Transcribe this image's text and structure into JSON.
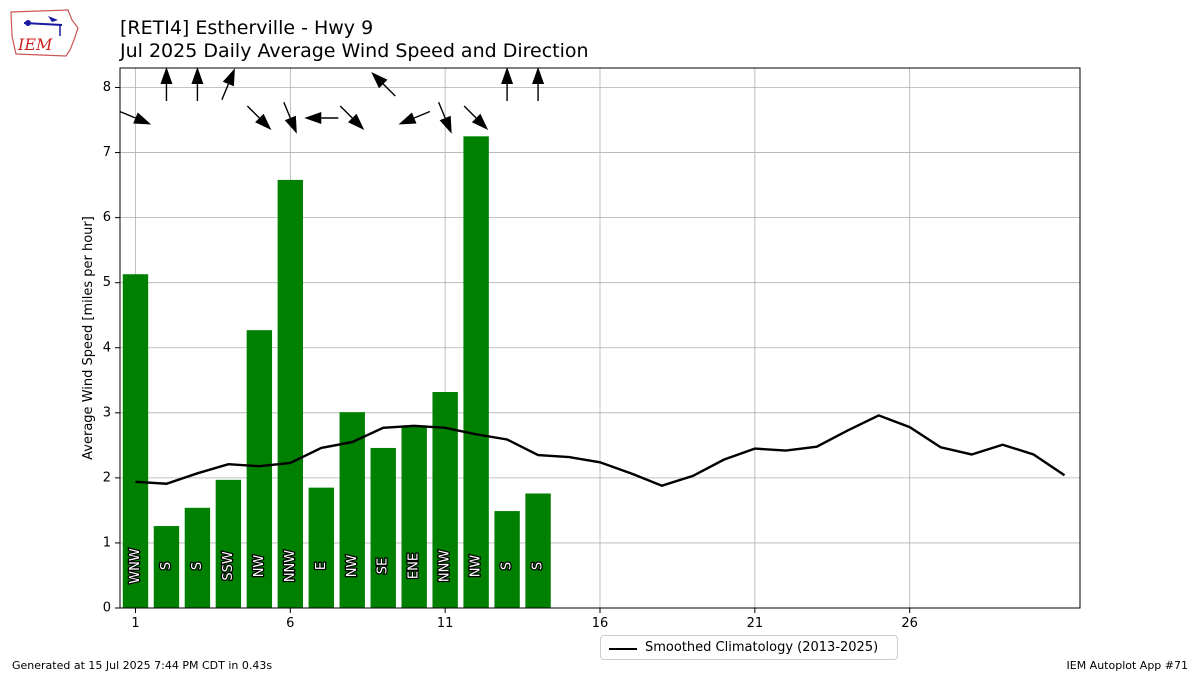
{
  "header": {
    "title_line1": "[RETI4] Estherville - Hwy 9",
    "title_line2": "Jul 2025 Daily Average Wind Speed and Direction",
    "logo_text": "IEM"
  },
  "footer": {
    "left": "Generated at 15 Jul 2025 7:44 PM CDT in 0.43s",
    "right": "IEM Autoplot App #71"
  },
  "colors": {
    "bar": "#008000",
    "line": "#000000",
    "grid": "#b0b0b0"
  },
  "chart_data": {
    "type": "bar",
    "ylabel": "Average Wind Speed [miles per hour]",
    "xlabel": "",
    "xlim": [
      0.5,
      31.5
    ],
    "ylim": [
      0,
      8.3
    ],
    "xticks": [
      1,
      6,
      11,
      16,
      21,
      26
    ],
    "yticks": [
      0,
      1,
      2,
      3,
      4,
      5,
      6,
      7,
      8
    ],
    "grid": true,
    "legend_position": "bottom-center",
    "bars": {
      "days": [
        1,
        2,
        3,
        4,
        5,
        6,
        7,
        8,
        9,
        10,
        11,
        12,
        13,
        14
      ],
      "values": [
        5.13,
        1.26,
        1.54,
        1.97,
        4.27,
        6.58,
        1.85,
        3.01,
        2.46,
        2.79,
        3.32,
        7.25,
        1.49,
        1.76
      ],
      "labels": [
        "WNW",
        "S",
        "S",
        "SSW",
        "NW",
        "NNW",
        "E",
        "NW",
        "SE",
        "ENE",
        "NNW",
        "NW",
        "S",
        "S"
      ]
    },
    "arrows": {
      "days": [
        1,
        2,
        3,
        4,
        5,
        6,
        7,
        8,
        9,
        10,
        11,
        12,
        13,
        14
      ],
      "row": [
        1,
        0,
        0,
        0,
        1,
        1,
        1,
        1,
        0,
        1,
        1,
        1,
        0,
        0
      ]
    },
    "series": [
      {
        "name": "Smoothed Climatology (2013-2025)",
        "x": [
          1,
          2,
          3,
          4,
          5,
          6,
          7,
          8,
          9,
          10,
          11,
          12,
          13,
          14,
          15,
          16,
          17,
          18,
          19,
          20,
          21,
          22,
          23,
          24,
          25,
          26,
          27,
          28,
          29,
          30,
          31
        ],
        "values": [
          1.94,
          1.91,
          2.07,
          2.21,
          2.18,
          2.23,
          2.46,
          2.55,
          2.77,
          2.8,
          2.77,
          2.67,
          2.59,
          2.35,
          2.32,
          2.24,
          2.07,
          1.88,
          2.03,
          2.28,
          2.45,
          2.42,
          2.48,
          2.73,
          2.96,
          2.78,
          2.47,
          2.36,
          2.51,
          2.36,
          2.04
        ]
      }
    ]
  }
}
